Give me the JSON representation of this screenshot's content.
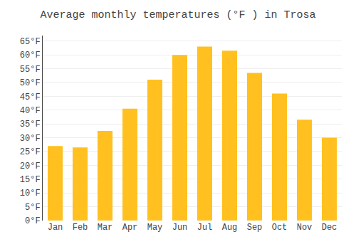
{
  "chart_data": {
    "type": "bar",
    "title": "Average monthly temperatures (°F ) in Trosa",
    "categories": [
      "Jan",
      "Feb",
      "Mar",
      "Apr",
      "May",
      "Jun",
      "Jul",
      "Aug",
      "Sep",
      "Oct",
      "Nov",
      "Dec"
    ],
    "values": [
      27,
      26.5,
      32.5,
      40.5,
      51,
      60,
      63,
      61.5,
      53.5,
      46,
      36.5,
      30
    ],
    "color": "#FFC020",
    "ylim": [
      0,
      67
    ],
    "yticks": [
      {
        "value": 0,
        "label": "0°F"
      },
      {
        "value": 5,
        "label": "5°F"
      },
      {
        "value": 10,
        "label": "10°F"
      },
      {
        "value": 15,
        "label": "15°F"
      },
      {
        "value": 20,
        "label": "20°F"
      },
      {
        "value": 25,
        "label": "25°F"
      },
      {
        "value": 30,
        "label": "30°F"
      },
      {
        "value": 35,
        "label": "35°F"
      },
      {
        "value": 40,
        "label": "40°F"
      },
      {
        "value": 45,
        "label": "45°F"
      },
      {
        "value": 50,
        "label": "50°F"
      },
      {
        "value": 55,
        "label": "55°F"
      },
      {
        "value": 60,
        "label": "60°F"
      },
      {
        "value": 65,
        "label": "65°F"
      }
    ],
    "grid": true
  }
}
